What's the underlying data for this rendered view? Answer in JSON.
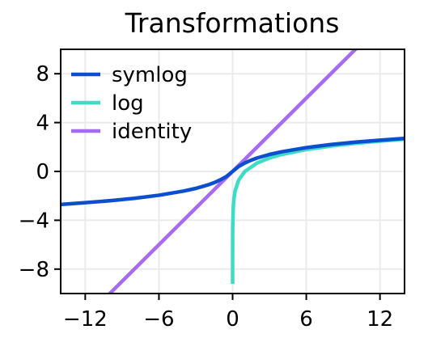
{
  "chart_data": {
    "type": "line",
    "title": "Transformations",
    "xlabel": "",
    "ylabel": "",
    "xlim": [
      -14,
      14
    ],
    "ylim": [
      -10,
      10
    ],
    "xticks": [
      -12,
      -6,
      0,
      6,
      12
    ],
    "yticks": [
      -8,
      -4,
      0,
      4,
      8
    ],
    "xtick_labels": [
      "−12",
      "−6",
      "0",
      "6",
      "12"
    ],
    "ytick_labels": [
      "−8",
      "−4",
      "0",
      "4",
      "8"
    ],
    "grid": true,
    "legend_position": "top-left",
    "series": [
      {
        "name": "symlog",
        "color": "#0b4fcf",
        "x": [
          -14,
          -12,
          -10,
          -8,
          -6,
          -4,
          -3,
          -2,
          -1.5,
          -1,
          -0.5,
          0,
          0.5,
          1,
          1.5,
          2,
          3,
          4,
          6,
          8,
          10,
          12,
          14
        ],
        "values": [
          -2.71,
          -2.56,
          -2.4,
          -2.2,
          -1.95,
          -1.61,
          -1.39,
          -1.1,
          -0.92,
          -0.69,
          -0.41,
          0,
          0.41,
          0.69,
          0.92,
          1.1,
          1.39,
          1.61,
          1.95,
          2.2,
          2.4,
          2.56,
          2.71
        ]
      },
      {
        "name": "log",
        "color": "#3ddcc4",
        "x": [
          0.0001,
          0.001,
          0.005,
          0.01,
          0.05,
          0.1,
          0.2,
          0.5,
          1,
          2,
          3,
          4,
          6,
          8,
          10,
          12,
          14
        ],
        "values": [
          -9.21,
          -6.91,
          -5.3,
          -4.61,
          -3.0,
          -2.3,
          -1.61,
          -0.69,
          0,
          0.69,
          1.1,
          1.39,
          1.79,
          2.08,
          2.3,
          2.48,
          2.64
        ]
      },
      {
        "name": "identity",
        "color": "#a66bf0",
        "x": [
          -14,
          14
        ],
        "values": [
          -14,
          14
        ]
      }
    ]
  }
}
